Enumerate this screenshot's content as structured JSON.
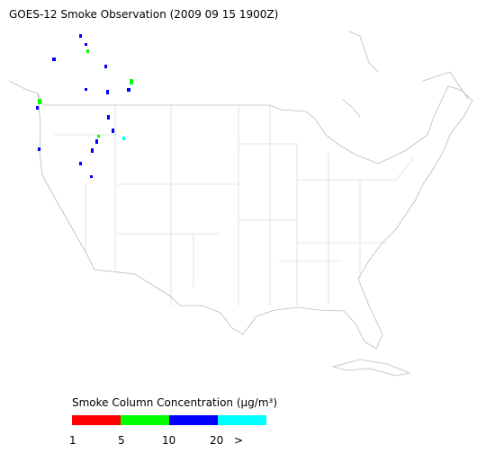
{
  "header": {
    "title": "GOES-12 Smoke Observation (2009 09 15  1900Z)"
  },
  "legend": {
    "title": "Smoke Column Concentration (μg/m³)",
    "colors": [
      "#ff0000",
      "#00ff00",
      "#0000ff",
      "#00ffff"
    ],
    "labels": [
      "1",
      "5",
      "10",
      "20",
      ">"
    ]
  }
}
